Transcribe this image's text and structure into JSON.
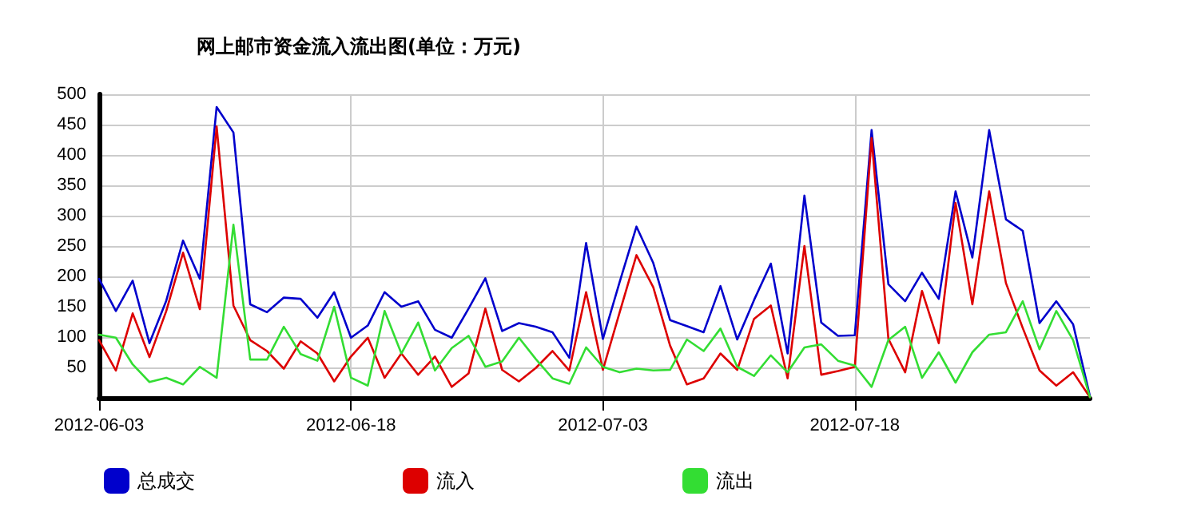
{
  "chart_data": {
    "type": "line",
    "title": "网上邮市资金流入流出图(单位：万元)",
    "x": [
      "2012-06-03",
      "2012-06-04",
      "2012-06-05",
      "2012-06-06",
      "2012-06-07",
      "2012-06-08",
      "2012-06-09",
      "2012-06-10",
      "2012-06-11",
      "2012-06-12",
      "2012-06-13",
      "2012-06-14",
      "2012-06-15",
      "2012-06-16",
      "2012-06-17",
      "2012-06-18",
      "2012-06-19",
      "2012-06-20",
      "2012-06-21",
      "2012-06-22",
      "2012-06-23",
      "2012-06-24",
      "2012-06-25",
      "2012-06-26",
      "2012-06-27",
      "2012-06-28",
      "2012-06-29",
      "2012-06-30",
      "2012-07-01",
      "2012-07-02",
      "2012-07-03",
      "2012-07-04",
      "2012-07-05",
      "2012-07-06",
      "2012-07-07",
      "2012-07-08",
      "2012-07-09",
      "2012-07-10",
      "2012-07-11",
      "2012-07-12",
      "2012-07-13",
      "2012-07-14",
      "2012-07-15",
      "2012-07-16",
      "2012-07-17",
      "2012-07-18",
      "2012-07-19",
      "2012-07-20",
      "2012-07-21",
      "2012-07-22",
      "2012-07-23",
      "2012-07-24",
      "2012-07-25",
      "2012-07-26",
      "2012-07-27",
      "2012-07-28",
      "2012-07-29",
      "2012-07-30",
      "2012-07-31",
      "2012-08-01"
    ],
    "series": [
      {
        "name": "总成交",
        "color": "#0000cc",
        "values": [
          196,
          143,
          193,
          90,
          160,
          259,
          196,
          479,
          437,
          154,
          141,
          165,
          163,
          132,
          174,
          99,
          119,
          174,
          150,
          159,
          112,
          99,
          147,
          197,
          110,
          123,
          117,
          108,
          66,
          255,
          97,
          191,
          282,
          222,
          128,
          118,
          108,
          184,
          96,
          161,
          221,
          73,
          333,
          124,
          102,
          103,
          441,
          187,
          159,
          206,
          163,
          340,
          231,
          441,
          294,
          275,
          123,
          159,
          121,
          3
        ]
      },
      {
        "name": "流入",
        "color": "#dd0000",
        "values": [
          95,
          45,
          139,
          67,
          143,
          239,
          146,
          447,
          152,
          95,
          77,
          48,
          93,
          73,
          27,
          68,
          99,
          33,
          73,
          38,
          68,
          18,
          40,
          147,
          46,
          27,
          49,
          77,
          45,
          174,
          46,
          141,
          235,
          182,
          86,
          22,
          32,
          73,
          46,
          130,
          152,
          32,
          250,
          38,
          44,
          51,
          428,
          97,
          42,
          176,
          90,
          321,
          154,
          340,
          189,
          115,
          45,
          20,
          42,
          1
        ]
      },
      {
        "name": "流出",
        "color": "#33dd33",
        "values": [
          104,
          99,
          55,
          26,
          33,
          22,
          51,
          33,
          285,
          63,
          63,
          117,
          72,
          61,
          150,
          33,
          20,
          143,
          73,
          124,
          45,
          82,
          102,
          51,
          60,
          99,
          64,
          32,
          23,
          83,
          51,
          42,
          48,
          45,
          46,
          96,
          77,
          114,
          51,
          36,
          70,
          42,
          83,
          88,
          61,
          53,
          18,
          95,
          117,
          33,
          75,
          25,
          75,
          104,
          108,
          159,
          80,
          143,
          95,
          1
        ]
      }
    ],
    "xlim": [
      "2012-06-03",
      "2012-08-01"
    ],
    "xticks": [
      "2012-06-03",
      "2012-06-18",
      "2012-07-03",
      "2012-07-18"
    ],
    "ylim": [
      0,
      500
    ],
    "yticks": [
      50,
      100,
      150,
      200,
      250,
      300,
      350,
      400,
      450,
      500
    ],
    "grid": true,
    "legend": "bottom left",
    "marker": "none",
    "line_style": "solid"
  }
}
